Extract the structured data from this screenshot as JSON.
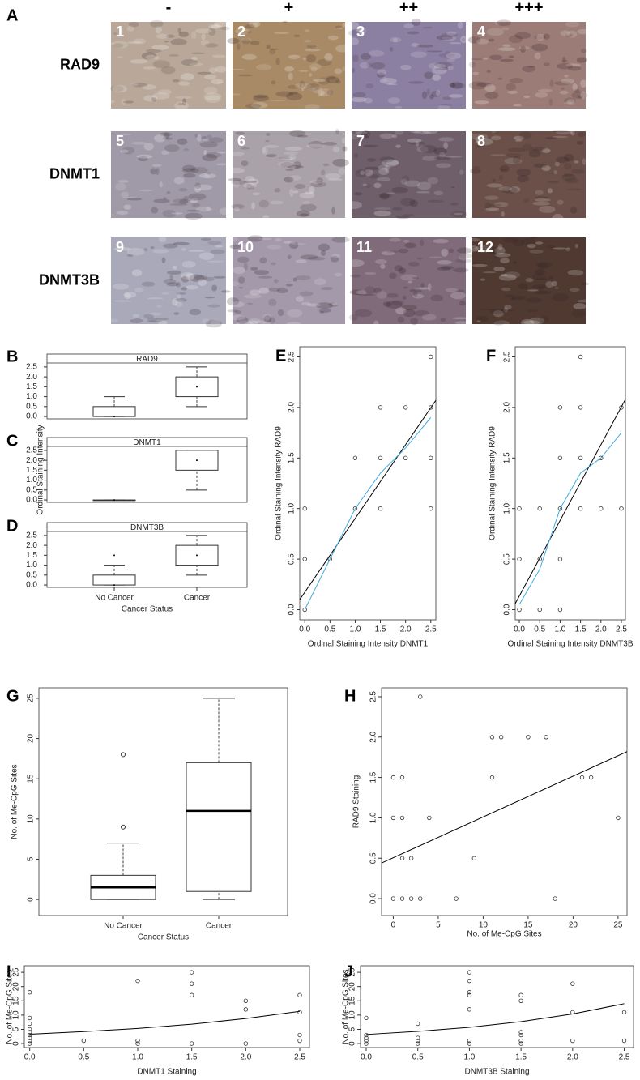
{
  "panel_a": {
    "label": "A",
    "columns": [
      "-",
      "+",
      "++",
      "+++"
    ],
    "rows": [
      "RAD9",
      "DNMT1",
      "DNMT3B"
    ],
    "images": [
      "1",
      "2",
      "3",
      "4",
      "5",
      "6",
      "7",
      "8",
      "9",
      "10",
      "11",
      "12"
    ]
  },
  "chart_data": [
    {
      "type": "box",
      "label": "B",
      "title": "RAD9",
      "median_style": "dot",
      "boxes": [
        {
          "min": 0,
          "q1": 0,
          "median": 0,
          "q3": 0.5,
          "max": 1.0,
          "outliers": []
        },
        {
          "min": 0.5,
          "q1": 1.0,
          "median": 1.5,
          "q3": 2.0,
          "max": 2.5,
          "outliers": []
        }
      ],
      "ylim": [
        -0.12,
        2.7
      ],
      "yticks": [
        {
          "value": 0,
          "label": "0.0"
        },
        0.5,
        {
          "value": 1,
          "label": "1.0"
        },
        1.5,
        {
          "value": 2,
          "label": "2.0"
        },
        2.5
      ]
    },
    {
      "type": "box",
      "label": "C",
      "title": "DNMT1",
      "median_style": "dot",
      "ylabel": "Ordinal Staining Intensity",
      "boxes": [
        {
          "min": 0,
          "q1": 0,
          "median": 0,
          "q3": 0,
          "max": 0,
          "outliers": []
        },
        {
          "min": 0.5,
          "q1": 1.5,
          "median": 2.0,
          "q3": 2.5,
          "max": 2.5,
          "outliers": []
        }
      ],
      "ylim": [
        -0.12,
        2.7
      ],
      "yticks": [
        {
          "value": 0,
          "label": "0.0"
        },
        0.5,
        {
          "value": 1,
          "label": "1.0"
        },
        1.5,
        {
          "value": 2,
          "label": "2.0"
        },
        2.5
      ]
    },
    {
      "type": "box",
      "label": "D",
      "title": "DNMT3B",
      "median_style": "dot",
      "xlabel": "Cancer Status",
      "categories": [
        "No Cancer",
        "Cancer"
      ],
      "boxes": [
        {
          "min": 0,
          "q1": 0,
          "median": 0,
          "q3": 0.5,
          "max": 1.0,
          "outliers": [
            1.5
          ]
        },
        {
          "min": 0.5,
          "q1": 1.0,
          "median": 1.5,
          "q3": 2.0,
          "max": 2.5,
          "outliers": []
        }
      ],
      "ylim": [
        -0.12,
        2.7
      ],
      "yticks": [
        {
          "value": 0,
          "label": "0.0"
        },
        0.5,
        {
          "value": 1,
          "label": "1.0"
        },
        1.5,
        {
          "value": 2,
          "label": "2.0"
        },
        2.5
      ]
    },
    {
      "type": "scatter",
      "label": "E",
      "xlabel": "Ordinal Staining Intensity DNMT1",
      "ylabel": "Ordinal Staining Intensity RAD9",
      "x": [
        0,
        0,
        0,
        0.5,
        1,
        1,
        1.5,
        1.5,
        1.5,
        2,
        2,
        2.5,
        2.5,
        2.5,
        2.5
      ],
      "y": [
        0,
        0.5,
        1,
        0.5,
        1,
        1.5,
        1,
        1.5,
        2,
        1.5,
        2,
        1,
        1.5,
        2,
        2.5
      ],
      "lines": [
        {
          "color": "#000000",
          "x": [
            -0.1,
            2.6
          ],
          "y": [
            0.1,
            2.07
          ]
        },
        {
          "color": "#3fa9e0",
          "x": [
            0,
            0.5,
            1,
            1.5,
            2,
            2.5
          ],
          "y": [
            0,
            0.5,
            1,
            1.35,
            1.6,
            1.9
          ]
        }
      ],
      "xlim": [
        -0.1,
        2.6
      ],
      "ylim": [
        -0.1,
        2.6
      ],
      "xticks": [
        {
          "value": 0,
          "label": "0.0"
        },
        0.5,
        {
          "value": 1,
          "label": "1.0"
        },
        1.5,
        {
          "value": 2,
          "label": "2.0"
        },
        2.5
      ],
      "yticks": [
        {
          "value": 0,
          "label": "0.0"
        },
        0.5,
        {
          "value": 1,
          "label": "1.0"
        },
        1.5,
        {
          "value": 2,
          "label": "2.0"
        },
        2.5
      ]
    },
    {
      "type": "scatter",
      "label": "F",
      "xlabel": "Ordinal Staining Intensity DNMT3B",
      "ylabel": "Ordinal Staining Intensity RAD9",
      "x": [
        0,
        0,
        0,
        0.5,
        0.5,
        0.5,
        1,
        1,
        1,
        1,
        1,
        1.5,
        1.5,
        1.5,
        1.5,
        2,
        2,
        2.5,
        2.5
      ],
      "y": [
        0,
        0.5,
        1,
        0,
        0.5,
        1,
        0,
        0.5,
        1,
        1.5,
        2,
        1,
        1.5,
        2,
        2.5,
        1,
        1.5,
        1,
        2
      ],
      "lines": [
        {
          "color": "#000000",
          "x": [
            -0.1,
            2.6
          ],
          "y": [
            0.06,
            2.08
          ]
        },
        {
          "color": "#3fa9e0",
          "x": [
            0,
            0.5,
            1,
            1.5,
            2,
            2.5
          ],
          "y": [
            0.05,
            0.4,
            1,
            1.35,
            1.5,
            1.75
          ]
        }
      ],
      "xlim": [
        -0.1,
        2.6
      ],
      "ylim": [
        -0.1,
        2.6
      ],
      "xticks": [
        {
          "value": 0,
          "label": "0.0"
        },
        0.5,
        {
          "value": 1,
          "label": "1.0"
        },
        1.5,
        {
          "value": 2,
          "label": "2.0"
        },
        2.5
      ],
      "yticks": [
        {
          "value": 0,
          "label": "0.0"
        },
        0.5,
        {
          "value": 1,
          "label": "1.0"
        },
        1.5,
        {
          "value": 2,
          "label": "2.0"
        },
        2.5
      ]
    },
    {
      "type": "box",
      "label": "G",
      "median_style": "line",
      "xlabel": "Cancer Status",
      "ylabel": "No. of Me-CpG Sites",
      "categories": [
        "No Cancer",
        "Cancer"
      ],
      "boxes": [
        {
          "min": 0,
          "q1": 0,
          "median": 1.5,
          "q3": 3,
          "max": 7,
          "outliers": [
            9,
            18
          ]
        },
        {
          "min": 0,
          "q1": 1,
          "median": 11,
          "q3": 17,
          "max": 25,
          "outliers": []
        }
      ],
      "ylim": [
        -2,
        26.3
      ],
      "yticks": [
        0,
        5,
        10,
        15,
        20,
        25
      ]
    },
    {
      "type": "scatter",
      "label": "H",
      "xlabel": "No. of Me-CpG Sites",
      "ylabel": "RAD9 Staining",
      "x": [
        0,
        0,
        0,
        1,
        1,
        1,
        1,
        2,
        2,
        3,
        3,
        4,
        7,
        9,
        11,
        11,
        12,
        15,
        17,
        18,
        21,
        22,
        25
      ],
      "y": [
        0,
        1,
        1.5,
        0,
        0.5,
        1,
        1.5,
        0,
        0.5,
        0,
        2.5,
        1,
        0,
        0.5,
        1.5,
        2,
        2,
        2,
        2,
        0,
        1.5,
        1.5,
        1
      ],
      "lines": [
        {
          "color": "#000000",
          "x": [
            -1.3,
            26
          ],
          "y": [
            0.44,
            1.82
          ]
        }
      ],
      "xlim": [
        -1.3,
        26
      ],
      "ylim": [
        -0.21,
        2.61
      ],
      "xticks": [
        0,
        5,
        10,
        15,
        20,
        25
      ],
      "yticks": [
        {
          "value": 0,
          "label": "0.0"
        },
        0.5,
        {
          "value": 1,
          "label": "1.0"
        },
        1.5,
        {
          "value": 2,
          "label": "2.0"
        },
        2.5
      ]
    },
    {
      "type": "scatter",
      "label": "I",
      "xlabel": "DNMT1 Staining",
      "ylabel": "No. of Me-CpG Sites",
      "x": [
        0,
        0,
        0,
        0,
        0,
        0,
        0,
        0,
        0,
        0.5,
        1,
        1,
        1,
        1.5,
        1.5,
        1.5,
        1.5,
        2,
        2,
        2,
        2.5,
        2.5,
        2.5,
        2.5
      ],
      "y": [
        0,
        1,
        2,
        3,
        4,
        5,
        7,
        9,
        18,
        1,
        0,
        1,
        22,
        0,
        17,
        21,
        25,
        0,
        12,
        15,
        1,
        3,
        11,
        17
      ],
      "lines": [
        {
          "color": "#000000",
          "x": [
            0,
            0.5,
            1,
            1.5,
            2,
            2.5
          ],
          "y": [
            3.3,
            4.2,
            5.3,
            6.8,
            8.8,
            11.3
          ]
        }
      ],
      "xlim": [
        -0.05,
        2.59
      ],
      "ylim": [
        -1.4,
        27.3
      ],
      "xticks": [
        {
          "value": 0,
          "label": "0.0"
        },
        0.5,
        {
          "value": 1,
          "label": "1.0"
        },
        1.5,
        {
          "value": 2,
          "label": "2.0"
        },
        2.5
      ],
      "yticks": [
        0,
        5,
        10,
        15,
        20,
        25
      ]
    },
    {
      "type": "scatter",
      "label": "J",
      "xlabel": "DNMT3B Staining",
      "ylabel": "No. of Me-CpG Sites",
      "x": [
        0,
        0,
        0,
        0,
        0,
        0.5,
        0.5,
        0.5,
        0.5,
        1,
        1,
        1,
        1,
        1,
        1,
        1,
        1.5,
        1.5,
        1.5,
        1.5,
        1.5,
        1.5,
        2,
        2,
        2,
        2.5,
        2.5
      ],
      "y": [
        0,
        1,
        2,
        3,
        9,
        0,
        1,
        2,
        7,
        0,
        1,
        12,
        17,
        18,
        22,
        25,
        0,
        1,
        3,
        4,
        15,
        17,
        1,
        11,
        21,
        1,
        11
      ],
      "lines": [
        {
          "color": "#000000",
          "x": [
            0,
            0.5,
            1,
            1.5,
            2,
            2.5
          ],
          "y": [
            3.2,
            4.3,
            5.7,
            7.7,
            10.4,
            14
          ]
        }
      ],
      "xlim": [
        -0.055,
        2.59
      ],
      "ylim": [
        -1.4,
        27.3
      ],
      "xticks": [
        {
          "value": 0,
          "label": "0.0"
        },
        0.5,
        {
          "value": 1,
          "label": "1.0"
        },
        1.5,
        {
          "value": 2,
          "label": "2.0"
        },
        2.5
      ],
      "yticks": [
        0,
        5,
        10,
        15,
        20,
        25
      ]
    }
  ]
}
